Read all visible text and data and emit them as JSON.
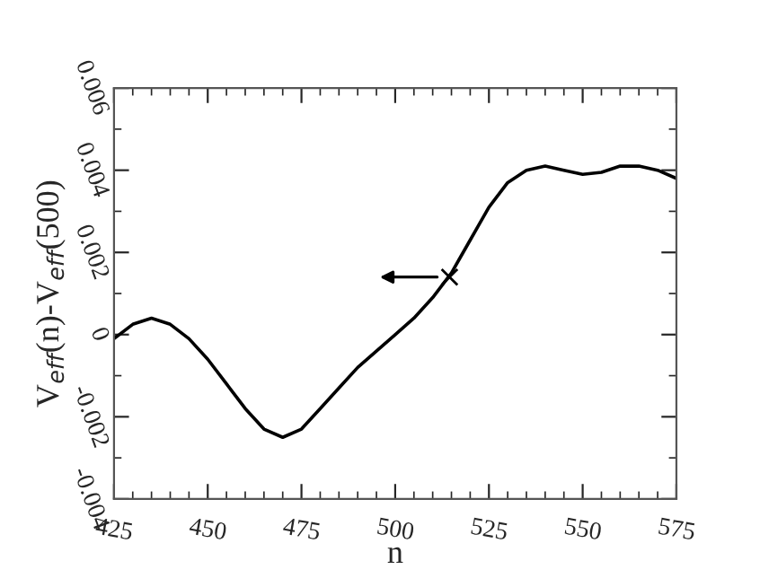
{
  "chart_data": {
    "type": "line",
    "xlabel": "n",
    "ylabel": "V$_{eff}$(n)-V$_{eff}$(500)",
    "xlim": [
      425,
      575
    ],
    "xticks": [
      425,
      450,
      475,
      500,
      525,
      550,
      575
    ],
    "ylim": [
      -0.004,
      0.006
    ],
    "yticks": [
      {
        "value": -0.004,
        "label": "-0.004"
      },
      {
        "value": -0.002,
        "label": "-0.002"
      },
      0,
      0.002,
      0.004,
      0.006
    ],
    "grid": false,
    "legend": false,
    "series": [
      {
        "color": "#000000",
        "marker": "none",
        "line_style": "solid",
        "x": [
          425,
          430,
          435,
          440,
          445,
          450,
          455,
          460,
          465,
          470,
          475,
          480,
          485,
          490,
          495,
          500,
          505,
          510,
          515,
          520,
          525,
          530,
          535,
          540,
          545,
          550,
          555,
          560,
          565,
          570,
          575
        ],
        "values": [
          -0.0001,
          0.00025,
          0.0004,
          0.00025,
          -0.0001,
          -0.0006,
          -0.0012,
          -0.0018,
          -0.0023,
          -0.0025,
          -0.0023,
          -0.0018,
          -0.0013,
          -0.0008,
          -0.0004,
          0.0,
          0.0004,
          0.0009,
          0.0015,
          0.0023,
          0.0031,
          0.0037,
          0.004,
          0.0041,
          0.004,
          0.0039,
          0.00395,
          0.0041,
          0.0041,
          0.004,
          0.0038
        ]
      },
      {
        "type": "scatter",
        "color": "#000000",
        "marker": "cross",
        "x": [
          514.5
        ],
        "values": [
          0.0014
        ]
      }
    ]
  }
}
